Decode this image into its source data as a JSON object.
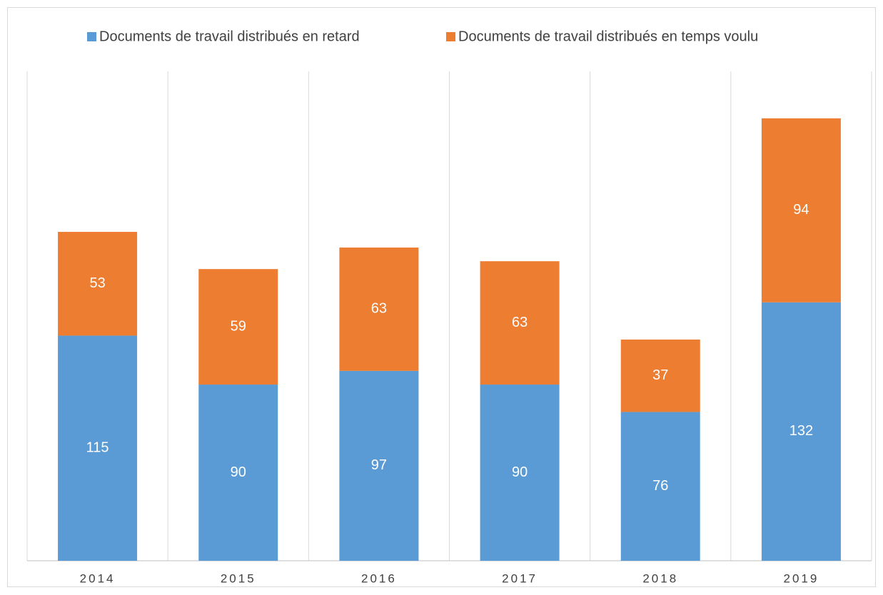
{
  "chart_data": {
    "type": "bar",
    "stacked": true,
    "categories": [
      "2014",
      "2015",
      "2016",
      "2017",
      "2018",
      "2019"
    ],
    "series": [
      {
        "name": "Documents de travail distribués en retard",
        "color": "#5b9bd5",
        "values": [
          115,
          90,
          97,
          90,
          76,
          132
        ]
      },
      {
        "name": "Documents de travail distribués en temps voulu",
        "color": "#ed7d31",
        "values": [
          53,
          59,
          63,
          63,
          37,
          94
        ]
      }
    ],
    "ylim": [
      0,
      250
    ],
    "legend": "top"
  }
}
